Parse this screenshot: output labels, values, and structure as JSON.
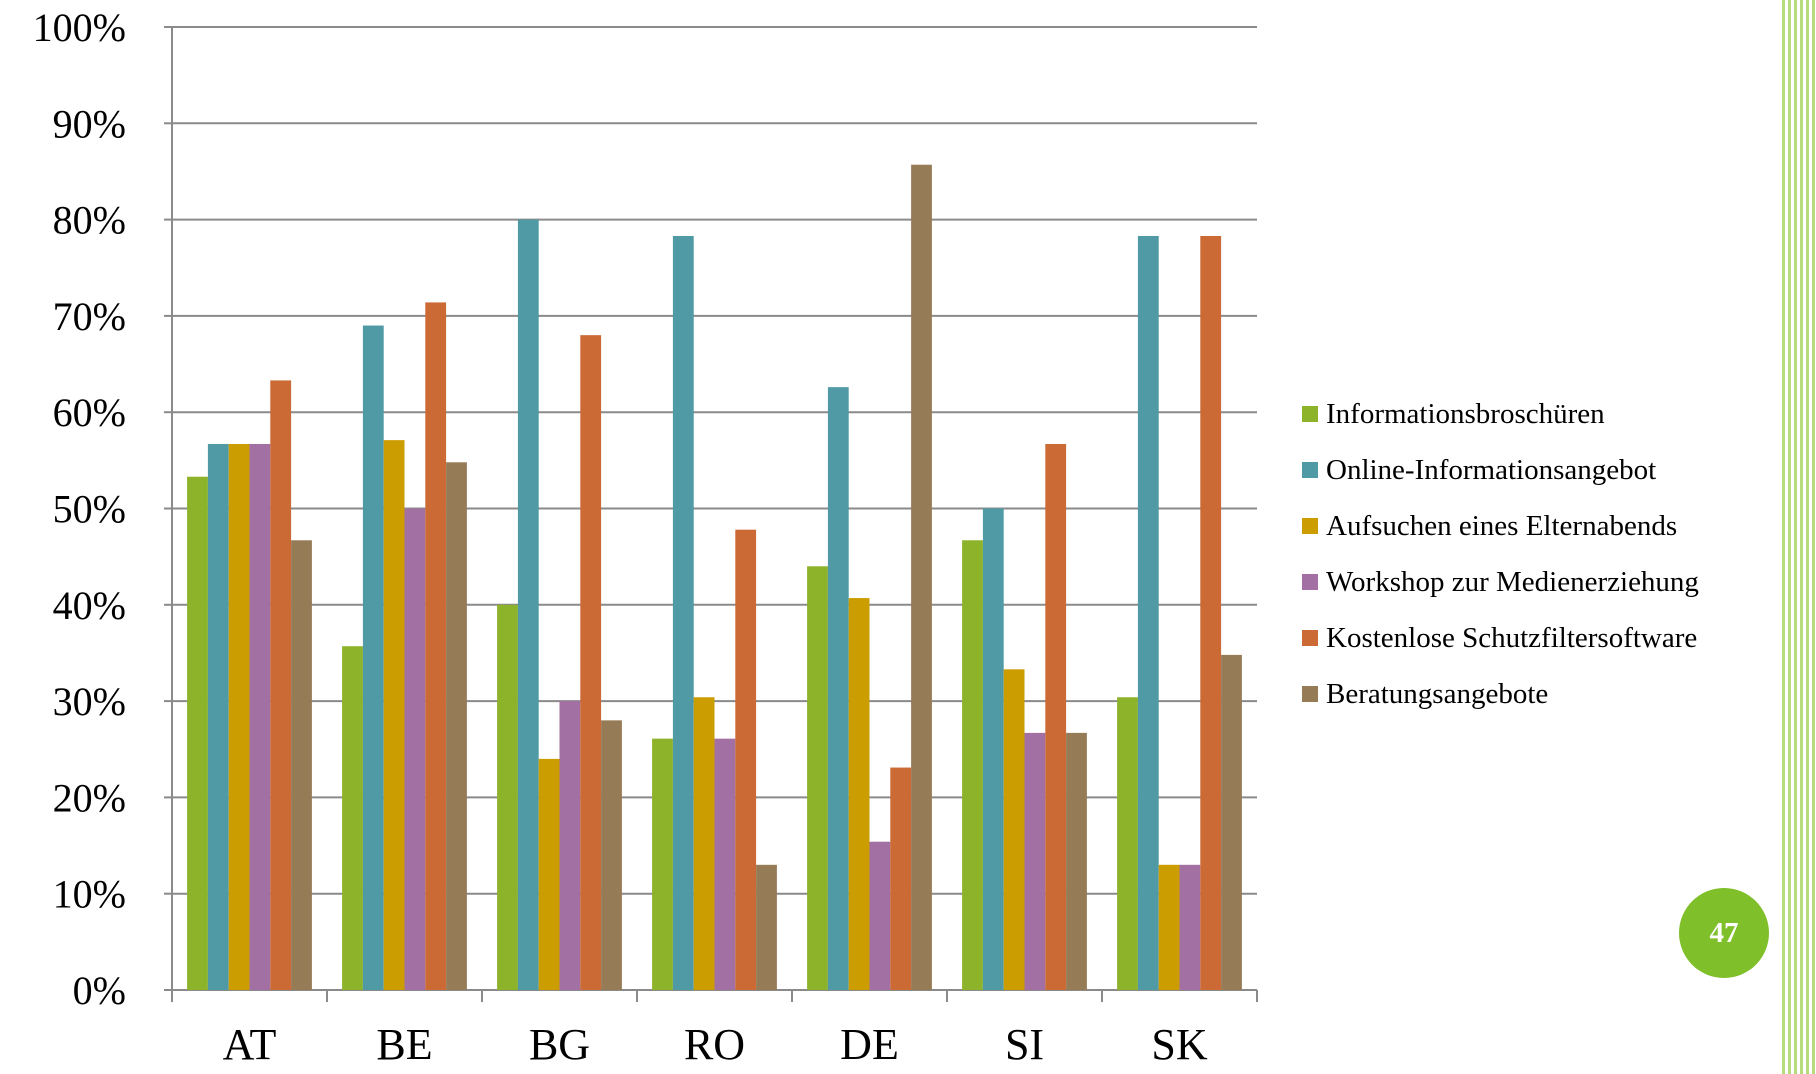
{
  "chart_data": {
    "type": "bar",
    "title": "",
    "xlabel": "",
    "ylabel": "",
    "ylim": [
      0,
      100
    ],
    "y_ticks": [
      "0%",
      "10%",
      "20%",
      "30%",
      "40%",
      "50%",
      "60%",
      "70%",
      "80%",
      "90%",
      "100%"
    ],
    "grid": true,
    "legend_position": "right",
    "categories": [
      "AT",
      "BE",
      "BG",
      "RO",
      "DE",
      "SI",
      "SK"
    ],
    "series": [
      {
        "name": "Informationsbroschüren",
        "color": "#8cb32a",
        "values": [
          53.3,
          35.7,
          40.0,
          26.1,
          44.0,
          46.7,
          30.4
        ]
      },
      {
        "name": "Online-Informationsangebot",
        "color": "#4f9aa5",
        "values": [
          56.7,
          69.0,
          80.0,
          78.3,
          62.6,
          50.0,
          78.3
        ]
      },
      {
        "name": "Aufsuchen eines Elternabends",
        "color": "#cc9d00",
        "values": [
          56.7,
          57.1,
          24.0,
          30.4,
          40.7,
          33.3,
          13.0
        ]
      },
      {
        "name": "Workshop zur Medienerziehung",
        "color": "#a270a3",
        "values": [
          56.7,
          50.0,
          30.0,
          26.1,
          15.4,
          26.7,
          13.0
        ]
      },
      {
        "name": "Kostenlose Schutzfiltersoftware",
        "color": "#cc6a35",
        "values": [
          63.3,
          71.4,
          68.0,
          47.8,
          23.1,
          56.7,
          78.3
        ]
      },
      {
        "name": "Beratungsangebote",
        "color": "#967b57",
        "values": [
          46.7,
          54.8,
          28.0,
          13.0,
          85.7,
          26.7,
          34.8
        ]
      }
    ]
  },
  "slide": {
    "page_number": "47",
    "badge_color": "#7fbf2a",
    "stripe_color": "#b7dc7c"
  }
}
